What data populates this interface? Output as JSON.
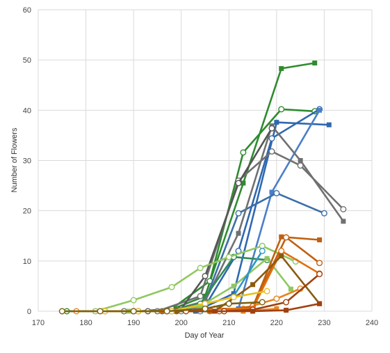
{
  "chart_data": {
    "type": "line",
    "title": "",
    "xlabel": "Day of Year",
    "ylabel": "Number of Flowers",
    "xlim": [
      170,
      240
    ],
    "ylim": [
      0,
      60
    ],
    "xticks": [
      170,
      180,
      190,
      200,
      210,
      220,
      230,
      240
    ],
    "yticks": [
      0,
      10,
      20,
      30,
      40,
      50,
      60
    ],
    "grid": true,
    "legend": "none",
    "series": [
      {
        "color": "#2e8b2e",
        "marker": "square",
        "x": [
          182,
          189,
          197,
          205,
          213,
          221,
          228
        ],
        "y": [
          0,
          0,
          0,
          3,
          25.5,
          48.3,
          49.4
        ]
      },
      {
        "color": "#2e8b2e",
        "marker": "circle",
        "x": [
          176,
          184,
          191,
          198,
          206,
          213,
          221,
          228
        ],
        "y": [
          0,
          0,
          0,
          0.5,
          6,
          31.6,
          40.2,
          39.8
        ]
      },
      {
        "color": "#2f68b0",
        "marker": "square",
        "x": [
          188,
          195,
          203,
          211,
          220,
          231
        ],
        "y": [
          0,
          0,
          0,
          3.5,
          37.6,
          37.1
        ]
      },
      {
        "color": "#2f68b0",
        "marker": "circle",
        "x": [
          190,
          196,
          205,
          212,
          219,
          229
        ],
        "y": [
          0,
          0,
          1,
          12,
          34.4,
          40.2
        ]
      },
      {
        "color": "#4a7ec8",
        "marker": "square",
        "x": [
          196,
          204,
          212,
          219,
          229
        ],
        "y": [
          0,
          0,
          0.5,
          23.7,
          40
        ]
      },
      {
        "color": "#3a6fa8",
        "marker": "circle",
        "x": [
          191,
          198,
          205,
          212,
          220,
          230
        ],
        "y": [
          0,
          0,
          2,
          19.5,
          23.5,
          19.5
        ]
      },
      {
        "color": "#707070",
        "marker": "square",
        "x": [
          190,
          197,
          205,
          212,
          219,
          225,
          234
        ],
        "y": [
          0,
          0,
          2,
          15.5,
          36.9,
          30,
          17.9
        ]
      },
      {
        "color": "#707070",
        "marker": "circle",
        "x": [
          188,
          195,
          204,
          212,
          219,
          225,
          234
        ],
        "y": [
          0,
          0,
          3,
          26,
          31.8,
          29,
          20.3
        ]
      },
      {
        "color": "#555555",
        "marker": "circle",
        "x": [
          193,
          200,
          205,
          212,
          219
        ],
        "y": [
          0,
          0.5,
          7,
          25.5,
          36.4
        ]
      },
      {
        "color": "#2e8b57",
        "marker": "circle",
        "x": [
          197,
          204,
          211,
          218
        ],
        "y": [
          0,
          1.5,
          10.8,
          10.2
        ]
      },
      {
        "color": "#8fc860",
        "marker": "circle",
        "x": [
          175,
          182,
          190,
          198,
          204,
          210,
          217,
          224
        ],
        "y": [
          0,
          0,
          2.2,
          4.8,
          8.6,
          10.8,
          13,
          9.9
        ]
      },
      {
        "color": "#8fc860",
        "marker": "square",
        "x": [
          189,
          196,
          204,
          211,
          218,
          223
        ],
        "y": [
          0,
          0,
          1,
          5,
          10.5,
          4.4
        ]
      },
      {
        "color": "#2e97c6",
        "marker": "circle",
        "x": [
          200,
          204,
          210,
          217
        ],
        "y": [
          0,
          0,
          1.5,
          12
        ]
      },
      {
        "color": "#e8841e",
        "marker": "circle",
        "x": [
          178,
          184,
          190,
          197,
          206,
          213,
          220,
          225
        ],
        "y": [
          0,
          0,
          0,
          0,
          0,
          0.5,
          2.5,
          4.5
        ]
      },
      {
        "color": "#e8841e",
        "marker": "square",
        "x": [
          184,
          191,
          198,
          206,
          213,
          220
        ],
        "y": [
          0,
          0,
          0,
          0,
          0,
          0.5
        ]
      },
      {
        "color": "#c06010",
        "marker": "square",
        "x": [
          196,
          206,
          215,
          221,
          229
        ],
        "y": [
          0,
          0,
          0.8,
          14.8,
          14.2
        ]
      },
      {
        "color": "#c06010",
        "marker": "circle",
        "x": [
          199,
          208,
          215,
          222,
          229
        ],
        "y": [
          0,
          0,
          1,
          14.7,
          9.6
        ]
      },
      {
        "color": "#e07010",
        "marker": "circle",
        "x": [
          197,
          207,
          215,
          221,
          229
        ],
        "y": [
          0,
          0.5,
          0.5,
          12,
          7.5
        ]
      },
      {
        "color": "#8b5a10",
        "marker": "square",
        "x": [
          183,
          191,
          199,
          207,
          215,
          221,
          229
        ],
        "y": [
          0,
          0,
          0,
          0,
          5.3,
          11,
          1.5
        ]
      },
      {
        "color": "#a04010",
        "marker": "circle",
        "x": [
          201,
          209,
          215,
          222,
          229
        ],
        "y": [
          0,
          0,
          0.3,
          1.8,
          7.4
        ]
      },
      {
        "color": "#a04010",
        "marker": "square",
        "x": [
          207,
          215,
          222,
          229
        ],
        "y": [
          0,
          0,
          0.2,
          1.5
        ]
      },
      {
        "color": "#e8c020",
        "marker": "circle",
        "x": [
          184,
          191,
          198,
          205,
          211,
          218
        ],
        "y": [
          0,
          0,
          0,
          1.5,
          2.8,
          4.0
        ]
      },
      {
        "color": "#7d6010",
        "marker": "circle",
        "x": [
          175,
          183,
          190,
          197,
          205,
          210,
          217
        ],
        "y": [
          0,
          0,
          0,
          0,
          0.5,
          1.5,
          1.8
        ]
      }
    ]
  }
}
